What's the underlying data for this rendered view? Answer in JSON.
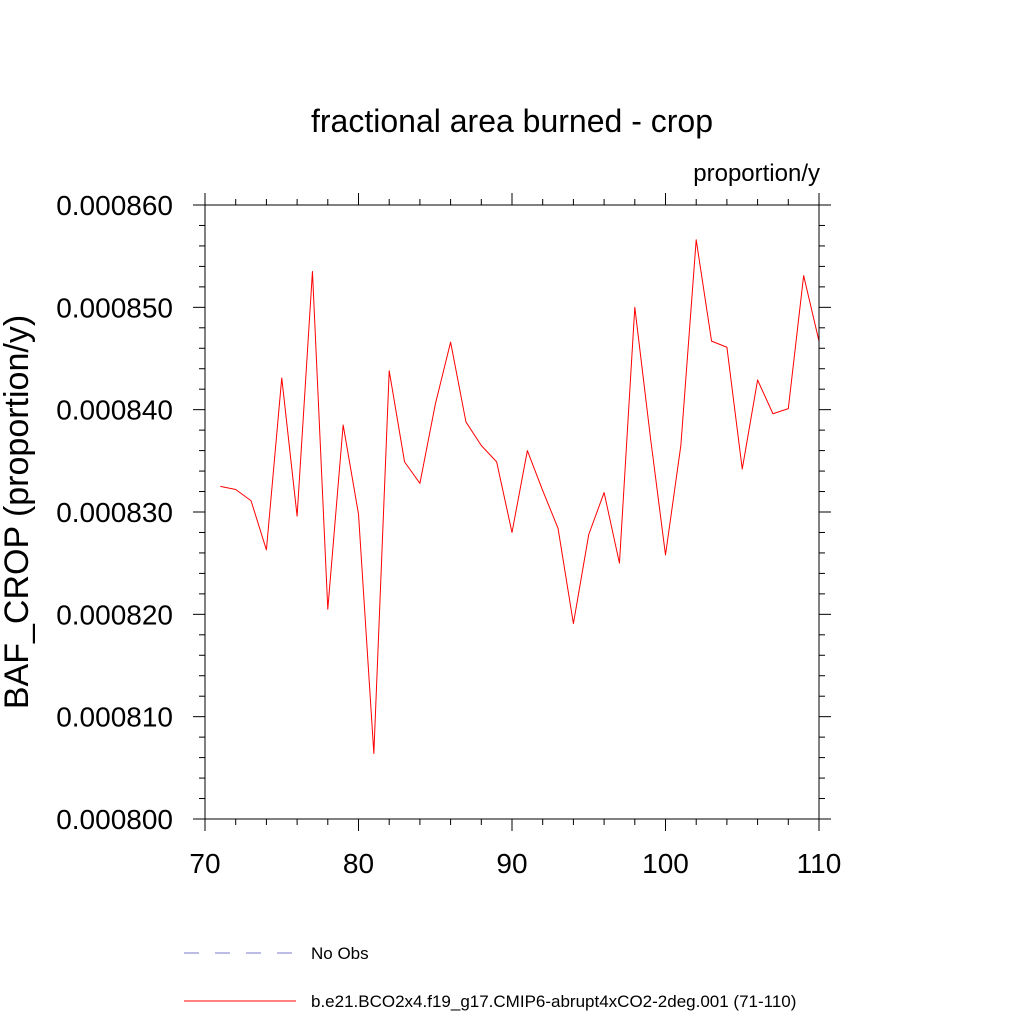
{
  "chart_data": {
    "type": "line",
    "title": "fractional area burned - crop",
    "units_label": "proportion/y",
    "ylabel": "BAF_CROP  (proportion/y)",
    "xlabel": "",
    "xlim": [
      70,
      110
    ],
    "ylim": [
      0.0008,
      0.00086
    ],
    "x_ticks": [
      70,
      80,
      90,
      100,
      110
    ],
    "x_tick_labels": [
      "70",
      "80",
      "90",
      "100",
      "110"
    ],
    "y_ticks": [
      0.0008,
      0.00081,
      0.00082,
      0.00083,
      0.00084,
      0.00085,
      0.00086
    ],
    "y_tick_labels": [
      "0.000800",
      "0.000810",
      "0.000820",
      "0.000830",
      "0.000840",
      "0.000850",
      "0.000860"
    ],
    "grid": false,
    "legend_position": "bottom",
    "series": [
      {
        "name": "No Obs",
        "color": "#7a7ac8",
        "dash": "dashed",
        "x": [],
        "y": []
      },
      {
        "name": "b.e21.BCO2x4.f19_g17.CMIP6-abrupt4xCO2-2deg.001 (71-110)",
        "color": "#ff0000",
        "dash": "solid",
        "x": [
          71,
          72,
          73,
          74,
          75,
          76,
          77,
          78,
          79,
          80,
          81,
          82,
          83,
          84,
          85,
          86,
          87,
          88,
          89,
          90,
          91,
          92,
          93,
          94,
          95,
          96,
          97,
          98,
          99,
          100,
          101,
          102,
          103,
          104,
          105,
          106,
          107,
          108,
          109,
          110
        ],
        "y": [
          0.0008325,
          0.0008322,
          0.0008311,
          0.0008263,
          0.0008431,
          0.0008296,
          0.0008535,
          0.0008205,
          0.0008385,
          0.0008298,
          0.0008064,
          0.0008438,
          0.0008349,
          0.0008328,
          0.0008405,
          0.0008466,
          0.0008388,
          0.0008365,
          0.0008349,
          0.000828,
          0.000836,
          0.0008321,
          0.0008284,
          0.0008191,
          0.0008278,
          0.0008319,
          0.000825,
          0.00085,
          0.0008375,
          0.0008258,
          0.0008365,
          0.0008566,
          0.0008467,
          0.0008461,
          0.0008342,
          0.0008429,
          0.0008396,
          0.0008401,
          0.0008531,
          0.0008467
        ]
      }
    ]
  }
}
